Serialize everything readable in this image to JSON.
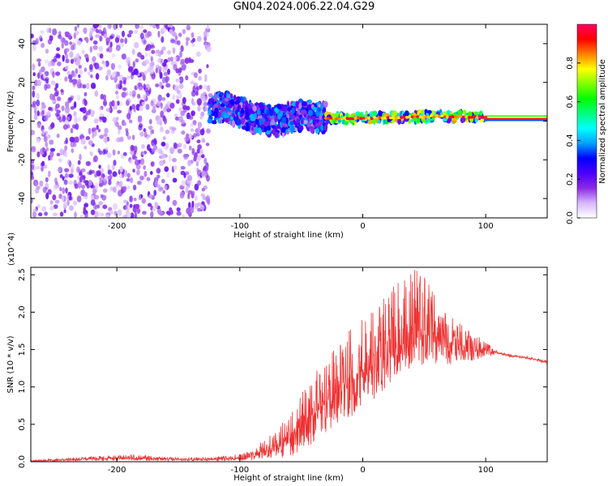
{
  "title": "GN04.2024.006.22.04.G29",
  "chart_data": [
    {
      "type": "heatmap",
      "xlabel": "Height of straight line (km)",
      "ylabel": "Frequency (Hz)",
      "xlim": [
        -270,
        150
      ],
      "ylim": [
        -50,
        50
      ],
      "xticks": [
        -200,
        -100,
        0,
        100
      ],
      "yticks": [
        -40,
        -20,
        0,
        20,
        40
      ],
      "colorbar": {
        "label": "Normalized spectral amplitude",
        "range": [
          0,
          1
        ],
        "ticks": [
          0.0,
          0.2,
          0.4,
          0.6,
          0.8
        ],
        "colors": [
          "#ffffff",
          "#d8b8ff",
          "#8a2be2",
          "#4b00ff",
          "#0000ff",
          "#00a0ff",
          "#00ffff",
          "#00ff80",
          "#00ff00",
          "#80ff00",
          "#ffff00",
          "#ff8000",
          "#ff0000",
          "#ff0060"
        ]
      },
      "regions": [
        {
          "x": [
            -270,
            -125
          ],
          "y": [
            -50,
            50
          ],
          "amplitude": 0.15
        },
        {
          "x": [
            -125,
            -30
          ],
          "y": [
            -10,
            15
          ],
          "amplitude": 0.3
        },
        {
          "x": [
            -30,
            100
          ],
          "y": [
            -2,
            6
          ],
          "amplitude": 0.6
        },
        {
          "x": [
            100,
            150
          ],
          "y": [
            0,
            3
          ],
          "amplitude": 0.95
        }
      ],
      "ridge": {
        "x": [
          -200,
          -170,
          -130,
          -110,
          -90,
          -70,
          -50,
          -30,
          0,
          30,
          60,
          100,
          150
        ],
        "y": [
          5,
          8,
          6,
          7,
          2,
          0,
          3,
          1.5,
          1.5,
          2,
          2.5,
          2,
          2
        ]
      }
    },
    {
      "type": "line",
      "xlabel": "Height of straight line (km)",
      "ylabel": "SNR (10 * v/v)",
      "y_multiplier": "(x10^4)",
      "xlim": [
        -270,
        150
      ],
      "ylim": [
        0,
        2.6
      ],
      "xticks": [
        -200,
        -100,
        0,
        100
      ],
      "yticks": [
        0.0,
        0.5,
        1.0,
        1.5,
        2.0,
        2.5
      ],
      "series": [
        {
          "color": "#ee3333",
          "x": [
            -270,
            -250,
            -230,
            -210,
            -190,
            -170,
            -150,
            -130,
            -110,
            -100,
            -90,
            -80,
            -70,
            -60,
            -50,
            -40,
            -30,
            -20,
            -10,
            0,
            10,
            20,
            30,
            40,
            50,
            60,
            70,
            80,
            90,
            100,
            110,
            120,
            130,
            140,
            150
          ],
          "y": [
            0.01,
            0.02,
            0.03,
            0.04,
            0.05,
            0.04,
            0.03,
            0.03,
            0.04,
            0.05,
            0.08,
            0.15,
            0.22,
            0.3,
            0.5,
            0.65,
            0.8,
            0.95,
            1.1,
            1.2,
            1.35,
            1.45,
            1.55,
            1.65,
            1.7,
            1.68,
            1.6,
            1.55,
            1.5,
            1.5,
            1.45,
            1.42,
            1.4,
            1.37,
            1.33
          ],
          "upper": [
            0.02,
            0.04,
            0.06,
            0.08,
            0.1,
            0.08,
            0.06,
            0.06,
            0.08,
            0.1,
            0.16,
            0.3,
            0.45,
            0.6,
            0.9,
            1.2,
            1.4,
            1.6,
            1.8,
            1.95,
            2.1,
            2.3,
            2.5,
            2.6,
            2.5,
            2.3,
            2.0,
            1.85,
            1.75,
            1.62,
            1.47,
            1.44,
            1.42,
            1.39,
            1.35
          ],
          "lower": [
            0.0,
            0.0,
            0.01,
            0.01,
            0.02,
            0.01,
            0.01,
            0.01,
            0.01,
            0.01,
            0.02,
            0.03,
            0.04,
            0.05,
            0.1,
            0.2,
            0.35,
            0.5,
            0.6,
            0.7,
            0.85,
            1.0,
            1.1,
            1.2,
            1.25,
            1.3,
            1.3,
            1.3,
            1.35,
            1.4,
            1.43,
            1.4,
            1.38,
            1.35,
            1.31
          ]
        }
      ]
    }
  ]
}
